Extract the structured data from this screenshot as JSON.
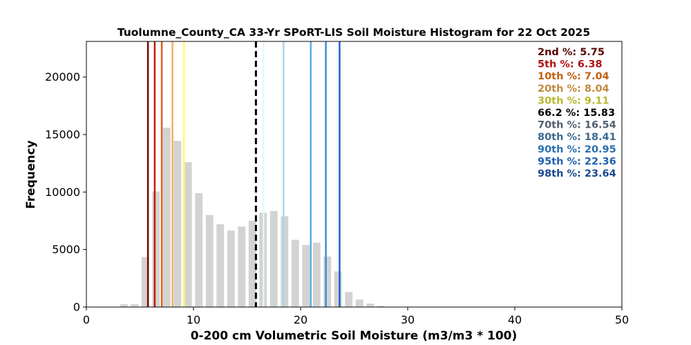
{
  "chart_data": {
    "type": "bar",
    "title": "Tuolumne_County_CA 33-Yr SPoRT-LIS Soil Moisture Histogram for 22 Oct 2025",
    "xlabel": "0-200 cm Volumetric Soil Moisture (m3/m3 * 100)",
    "ylabel": "Frequency",
    "xlim": [
      0,
      50
    ],
    "ylim": [
      0,
      23100
    ],
    "xticks": [
      "0",
      "10",
      "20",
      "30",
      "40",
      "50"
    ],
    "yticks": [
      "0",
      "5000",
      "10000",
      "15000",
      "20000"
    ],
    "bar_color": "#d3d3d3",
    "bins": [
      {
        "x": 3.5,
        "value": 250
      },
      {
        "x": 4.5,
        "value": 250
      },
      {
        "x": 5.5,
        "value": 4350
      },
      {
        "x": 6.5,
        "value": 10050
      },
      {
        "x": 7.5,
        "value": 15600
      },
      {
        "x": 8.5,
        "value": 14450
      },
      {
        "x": 9.5,
        "value": 12600
      },
      {
        "x": 10.5,
        "value": 9900
      },
      {
        "x": 11.5,
        "value": 8000
      },
      {
        "x": 12.5,
        "value": 7200
      },
      {
        "x": 13.5,
        "value": 6650
      },
      {
        "x": 14.5,
        "value": 7000
      },
      {
        "x": 15.5,
        "value": 7500
      },
      {
        "x": 16.5,
        "value": 8200
      },
      {
        "x": 17.5,
        "value": 8350
      },
      {
        "x": 18.5,
        "value": 7900
      },
      {
        "x": 19.5,
        "value": 5850
      },
      {
        "x": 20.5,
        "value": 5400
      },
      {
        "x": 21.5,
        "value": 5600
      },
      {
        "x": 22.5,
        "value": 4400
      },
      {
        "x": 23.5,
        "value": 3100
      },
      {
        "x": 24.5,
        "value": 1300
      },
      {
        "x": 25.5,
        "value": 650
      },
      {
        "x": 26.5,
        "value": 300
      },
      {
        "x": 27.5,
        "value": 100
      }
    ],
    "percentiles": [
      {
        "label": "2nd %",
        "value": "5.75",
        "x": 5.75,
        "color": "#7a0000",
        "text_color": "#5a0000",
        "dashed": false
      },
      {
        "label": "5th %",
        "value": "6.38",
        "x": 6.38,
        "color": "#c81800",
        "text_color": "#b01010",
        "dashed": false
      },
      {
        "label": "10th %",
        "value": "7.04",
        "x": 7.04,
        "color": "#e06010",
        "text_color": "#c06010",
        "dashed": false
      },
      {
        "label": "20th %",
        "value": "8.04",
        "x": 8.04,
        "color": "#f5b060",
        "text_color": "#c08a40",
        "dashed": false
      },
      {
        "label": "30th %",
        "value": "9.11",
        "x": 9.11,
        "color": "#ffff66",
        "text_color": "#b8b830",
        "dashed": false
      },
      {
        "label": "66.2 %",
        "value": "15.83",
        "x": 15.83,
        "color": "#000000",
        "text_color": "#000000",
        "dashed": true
      },
      {
        "label": "70th %",
        "value": "16.54",
        "x": 16.54,
        "color": "#e6f6ff",
        "text_color": "#506070",
        "dashed": false
      },
      {
        "label": "80th %",
        "value": "18.41",
        "x": 18.41,
        "color": "#a8d4f0",
        "text_color": "#3a6a90",
        "dashed": false
      },
      {
        "label": "90th %",
        "value": "20.95",
        "x": 20.95,
        "color": "#5aacdf",
        "text_color": "#2a70b0",
        "dashed": false
      },
      {
        "label": "95th %",
        "value": "22.36",
        "x": 22.36,
        "color": "#3a90d8",
        "text_color": "#2060b0",
        "dashed": false
      },
      {
        "label": "98th %",
        "value": "23.64",
        "x": 23.64,
        "color": "#2060c8",
        "text_color": "#1a4a90",
        "dashed": false
      }
    ],
    "legend_position": "top-right",
    "grid": false
  }
}
